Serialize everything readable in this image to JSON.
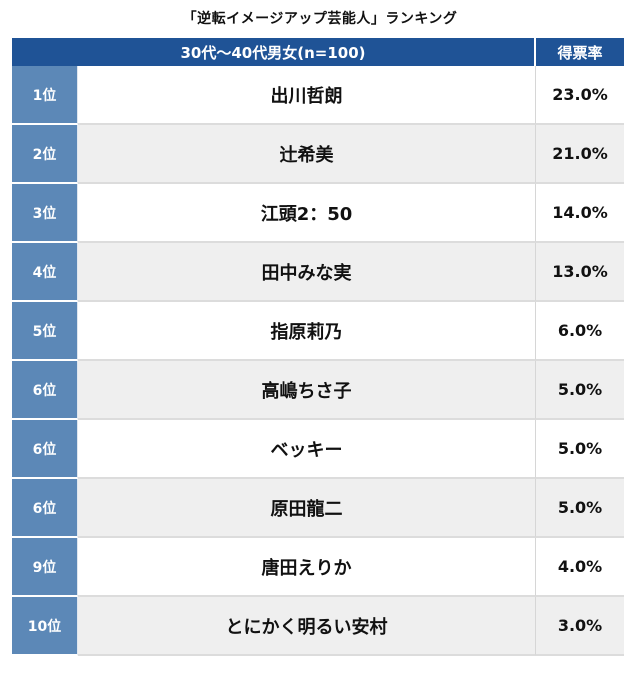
{
  "title": "「逆転イメージアップ芸能人」ランキング",
  "colors": {
    "header_bg": "#1f5396",
    "rank_bg": "#5c88b7",
    "row_alt_bg": "#efefef"
  },
  "chart_data": {
    "type": "table",
    "header": {
      "group": "30代〜40代男女(n=100)",
      "value": "得票率"
    },
    "rows": [
      {
        "rank": "1位",
        "name": "出川哲朗",
        "value": "23.0%"
      },
      {
        "rank": "2位",
        "name": "辻希美",
        "value": "21.0%"
      },
      {
        "rank": "3位",
        "name": "江頭2：50",
        "value": "14.0%"
      },
      {
        "rank": "4位",
        "name": "田中みな実",
        "value": "13.0%"
      },
      {
        "rank": "5位",
        "name": "指原莉乃",
        "value": "6.0%"
      },
      {
        "rank": "6位",
        "name": "高嶋ちさ子",
        "value": "5.0%"
      },
      {
        "rank": "6位",
        "name": "ベッキー",
        "value": "5.0%"
      },
      {
        "rank": "6位",
        "name": "原田龍二",
        "value": "5.0%"
      },
      {
        "rank": "9位",
        "name": "唐田えりか",
        "value": "4.0%"
      },
      {
        "rank": "10位",
        "name": "とにかく明るい安村",
        "value": "3.0%"
      }
    ]
  }
}
